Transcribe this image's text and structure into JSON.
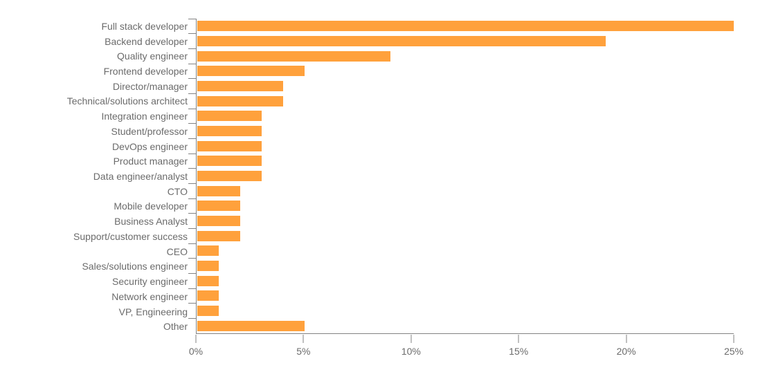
{
  "chart_data": {
    "type": "bar",
    "orientation": "horizontal",
    "title": "",
    "xlabel": "",
    "ylabel": "",
    "categories": [
      "Full stack developer",
      "Backend developer",
      "Quality engineer",
      "Frontend developer",
      "Director/manager",
      "Technical/solutions architect",
      "Integration engineer",
      "Student/professor",
      "DevOps engineer",
      "Product manager",
      "Data engineer/analyst",
      "CTO",
      "Mobile developer",
      "Business Analyst",
      "Support/customer success",
      "CEO",
      "Sales/solutions engineer",
      "Security engineer",
      "Network engineer",
      "VP, Engineering",
      "Other"
    ],
    "values": [
      25,
      19,
      9,
      5,
      4,
      4,
      3,
      3,
      3,
      3,
      3,
      2,
      2,
      2,
      2,
      1,
      1,
      1,
      1,
      1,
      5
    ],
    "value_unit": "%",
    "xlim": [
      0,
      25
    ],
    "x_ticks": [
      {
        "value": 0,
        "label": "0%"
      },
      {
        "value": 5,
        "label": "5%"
      },
      {
        "value": 10,
        "label": "10%"
      },
      {
        "value": 15,
        "label": "15%"
      },
      {
        "value": 20,
        "label": "20%"
      },
      {
        "value": 25,
        "label": "25%"
      }
    ],
    "grid": false,
    "legend": null,
    "colors": {
      "bar": "#ffa13c",
      "axis": "#828282",
      "tick": "#828282",
      "text": "#6b6b6b",
      "background": "#ffffff"
    }
  }
}
